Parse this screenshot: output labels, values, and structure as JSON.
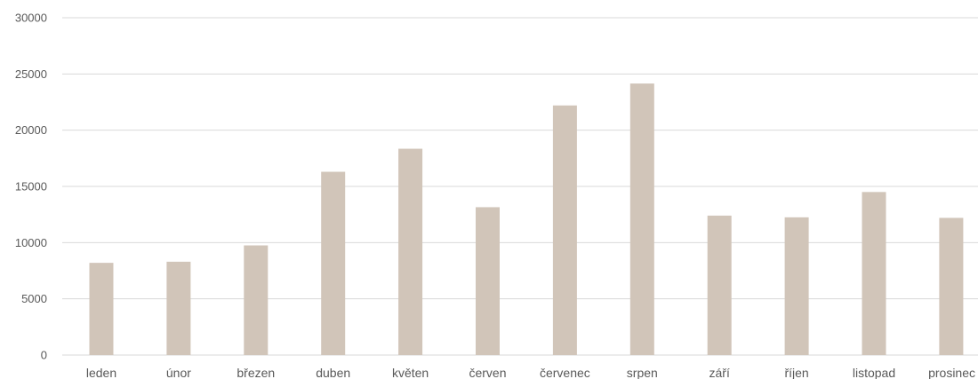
{
  "chart_data": {
    "type": "bar",
    "title": "",
    "xlabel": "",
    "ylabel": "",
    "categories": [
      "leden",
      "únor",
      "březen",
      "duben",
      "květen",
      "červen",
      "červenec",
      "srpen",
      "září",
      "říjen",
      "listopad",
      "prosinec"
    ],
    "values": [
      8200,
      8300,
      9750,
      16300,
      18350,
      13150,
      22200,
      24150,
      12400,
      12250,
      14500,
      12200
    ],
    "ylim": [
      0,
      30000
    ],
    "yticks": [
      "0",
      "5000",
      "10000",
      "15000",
      "20000",
      "25000",
      "30000"
    ],
    "grid": true,
    "legend": "none",
    "colors": {
      "bar": "#d1c5b9",
      "grid": "#d9d9d9",
      "text": "#595959"
    }
  }
}
